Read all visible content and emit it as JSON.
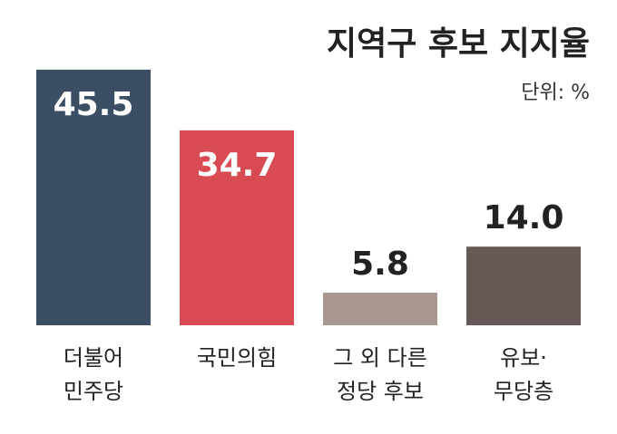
{
  "chart_data": {
    "type": "bar",
    "title": "지역구 후보 지지율",
    "subtitle": "단위: %",
    "categories": [
      [
        "더불어",
        "민주당"
      ],
      [
        "국민의힘"
      ],
      [
        "그 외 다른",
        "정당 후보"
      ],
      [
        "유보·",
        "무당층"
      ]
    ],
    "values": [
      45.5,
      34.7,
      5.8,
      14.0
    ],
    "value_labels": [
      "45.5",
      "34.7",
      "5.8",
      "14.0"
    ],
    "colors": [
      "#3b4e63",
      "#d94b53",
      "#a89790",
      "#675955"
    ]
  }
}
